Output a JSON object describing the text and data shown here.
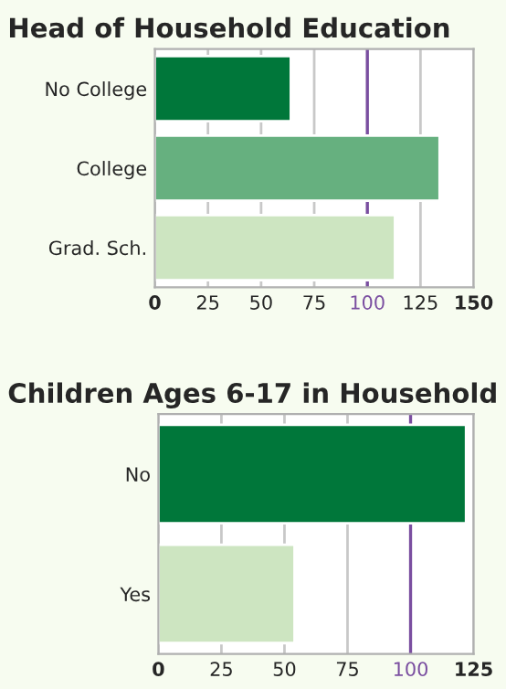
{
  "chart_data": [
    {
      "type": "bar",
      "orientation": "horizontal",
      "title": "Head of Household Education",
      "categories": [
        "No College",
        "College",
        "Grad. Sch."
      ],
      "values": [
        64,
        134,
        113
      ],
      "colors": [
        "#00773a",
        "#66b07f",
        "#cde5c1"
      ],
      "xlim": [
        0,
        150
      ],
      "xticks": [
        0,
        25,
        50,
        75,
        100,
        125,
        150
      ],
      "grid": "x",
      "ref_lines": [
        {
          "axis": "x",
          "value": 100,
          "color": "#7a4ea0"
        }
      ]
    },
    {
      "type": "bar",
      "orientation": "horizontal",
      "title": "Children Ages 6-17 in Household",
      "categories": [
        "No",
        "Yes"
      ],
      "values": [
        122,
        54
      ],
      "colors": [
        "#00773a",
        "#cde5c1"
      ],
      "xlim": [
        0,
        125
      ],
      "xticks": [
        0,
        25,
        50,
        75,
        100,
        125
      ],
      "grid": "x",
      "ref_lines": [
        {
          "axis": "x",
          "value": 100,
          "color": "#7a4ea0"
        }
      ]
    }
  ]
}
